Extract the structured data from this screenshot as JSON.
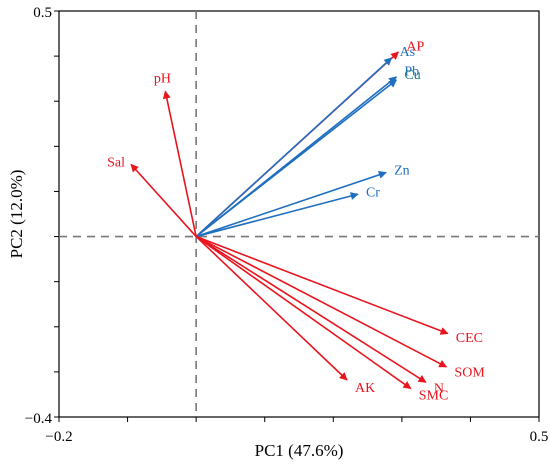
{
  "chart_data": {
    "type": "biplot",
    "xlabel": "PC1 (47.6%)",
    "ylabel": "PC2 (12.0%)",
    "xlim": [
      -0.2,
      0.5
    ],
    "ylim": [
      -0.4,
      0.5
    ],
    "x_tick_labels": [
      "−0.2",
      "0.5"
    ],
    "y_tick_labels": [
      "0.5",
      "−0.4"
    ],
    "grid": false,
    "reference_lines": {
      "x": 0,
      "y": 0,
      "style": "dashed"
    },
    "colors": {
      "red": "#e8141e",
      "blue": "#1f6fc0",
      "teal": "#18808a"
    },
    "vectors": [
      {
        "label": "AP",
        "x": 0.295,
        "y": 0.409,
        "arrow_color": "#e8141e",
        "label_color": "#e8141e"
      },
      {
        "label": "As",
        "x": 0.285,
        "y": 0.396,
        "arrow_color": "#1f6fc0",
        "label_color": "#1f6fc0"
      },
      {
        "label": "Pb",
        "x": 0.292,
        "y": 0.354,
        "arrow_color": "#1f6fc0",
        "label_color": "#1f6fc0"
      },
      {
        "label": "Cu",
        "x": 0.292,
        "y": 0.347,
        "arrow_color": "#1f6fc0",
        "label_color": "#18808a"
      },
      {
        "label": "Zn",
        "x": 0.277,
        "y": 0.142,
        "arrow_color": "#1f6fc0",
        "label_color": "#1f6fc0"
      },
      {
        "label": "Cr",
        "x": 0.236,
        "y": 0.094,
        "arrow_color": "#1f6fc0",
        "label_color": "#1f6fc0"
      },
      {
        "label": "pH",
        "x": -0.045,
        "y": 0.322,
        "arrow_color": "#e8141e",
        "label_color": "#e8141e"
      },
      {
        "label": "Sal",
        "x": -0.095,
        "y": 0.16,
        "arrow_color": "#e8141e",
        "label_color": "#e8141e"
      },
      {
        "label": "CEC",
        "x": 0.367,
        "y": -0.215,
        "arrow_color": "#e8141e",
        "label_color": "#e8141e"
      },
      {
        "label": "SOM",
        "x": 0.365,
        "y": -0.289,
        "arrow_color": "#e8141e",
        "label_color": "#e8141e"
      },
      {
        "label": "N",
        "x": 0.335,
        "y": -0.323,
        "arrow_color": "#e8141e",
        "label_color": "#e8141e"
      },
      {
        "label": "SMC",
        "x": 0.313,
        "y": -0.337,
        "arrow_color": "#e8141e",
        "label_color": "#e8141e"
      },
      {
        "label": "AK",
        "x": 0.22,
        "y": -0.318,
        "arrow_color": "#e8141e",
        "label_color": "#e8141e"
      }
    ]
  }
}
